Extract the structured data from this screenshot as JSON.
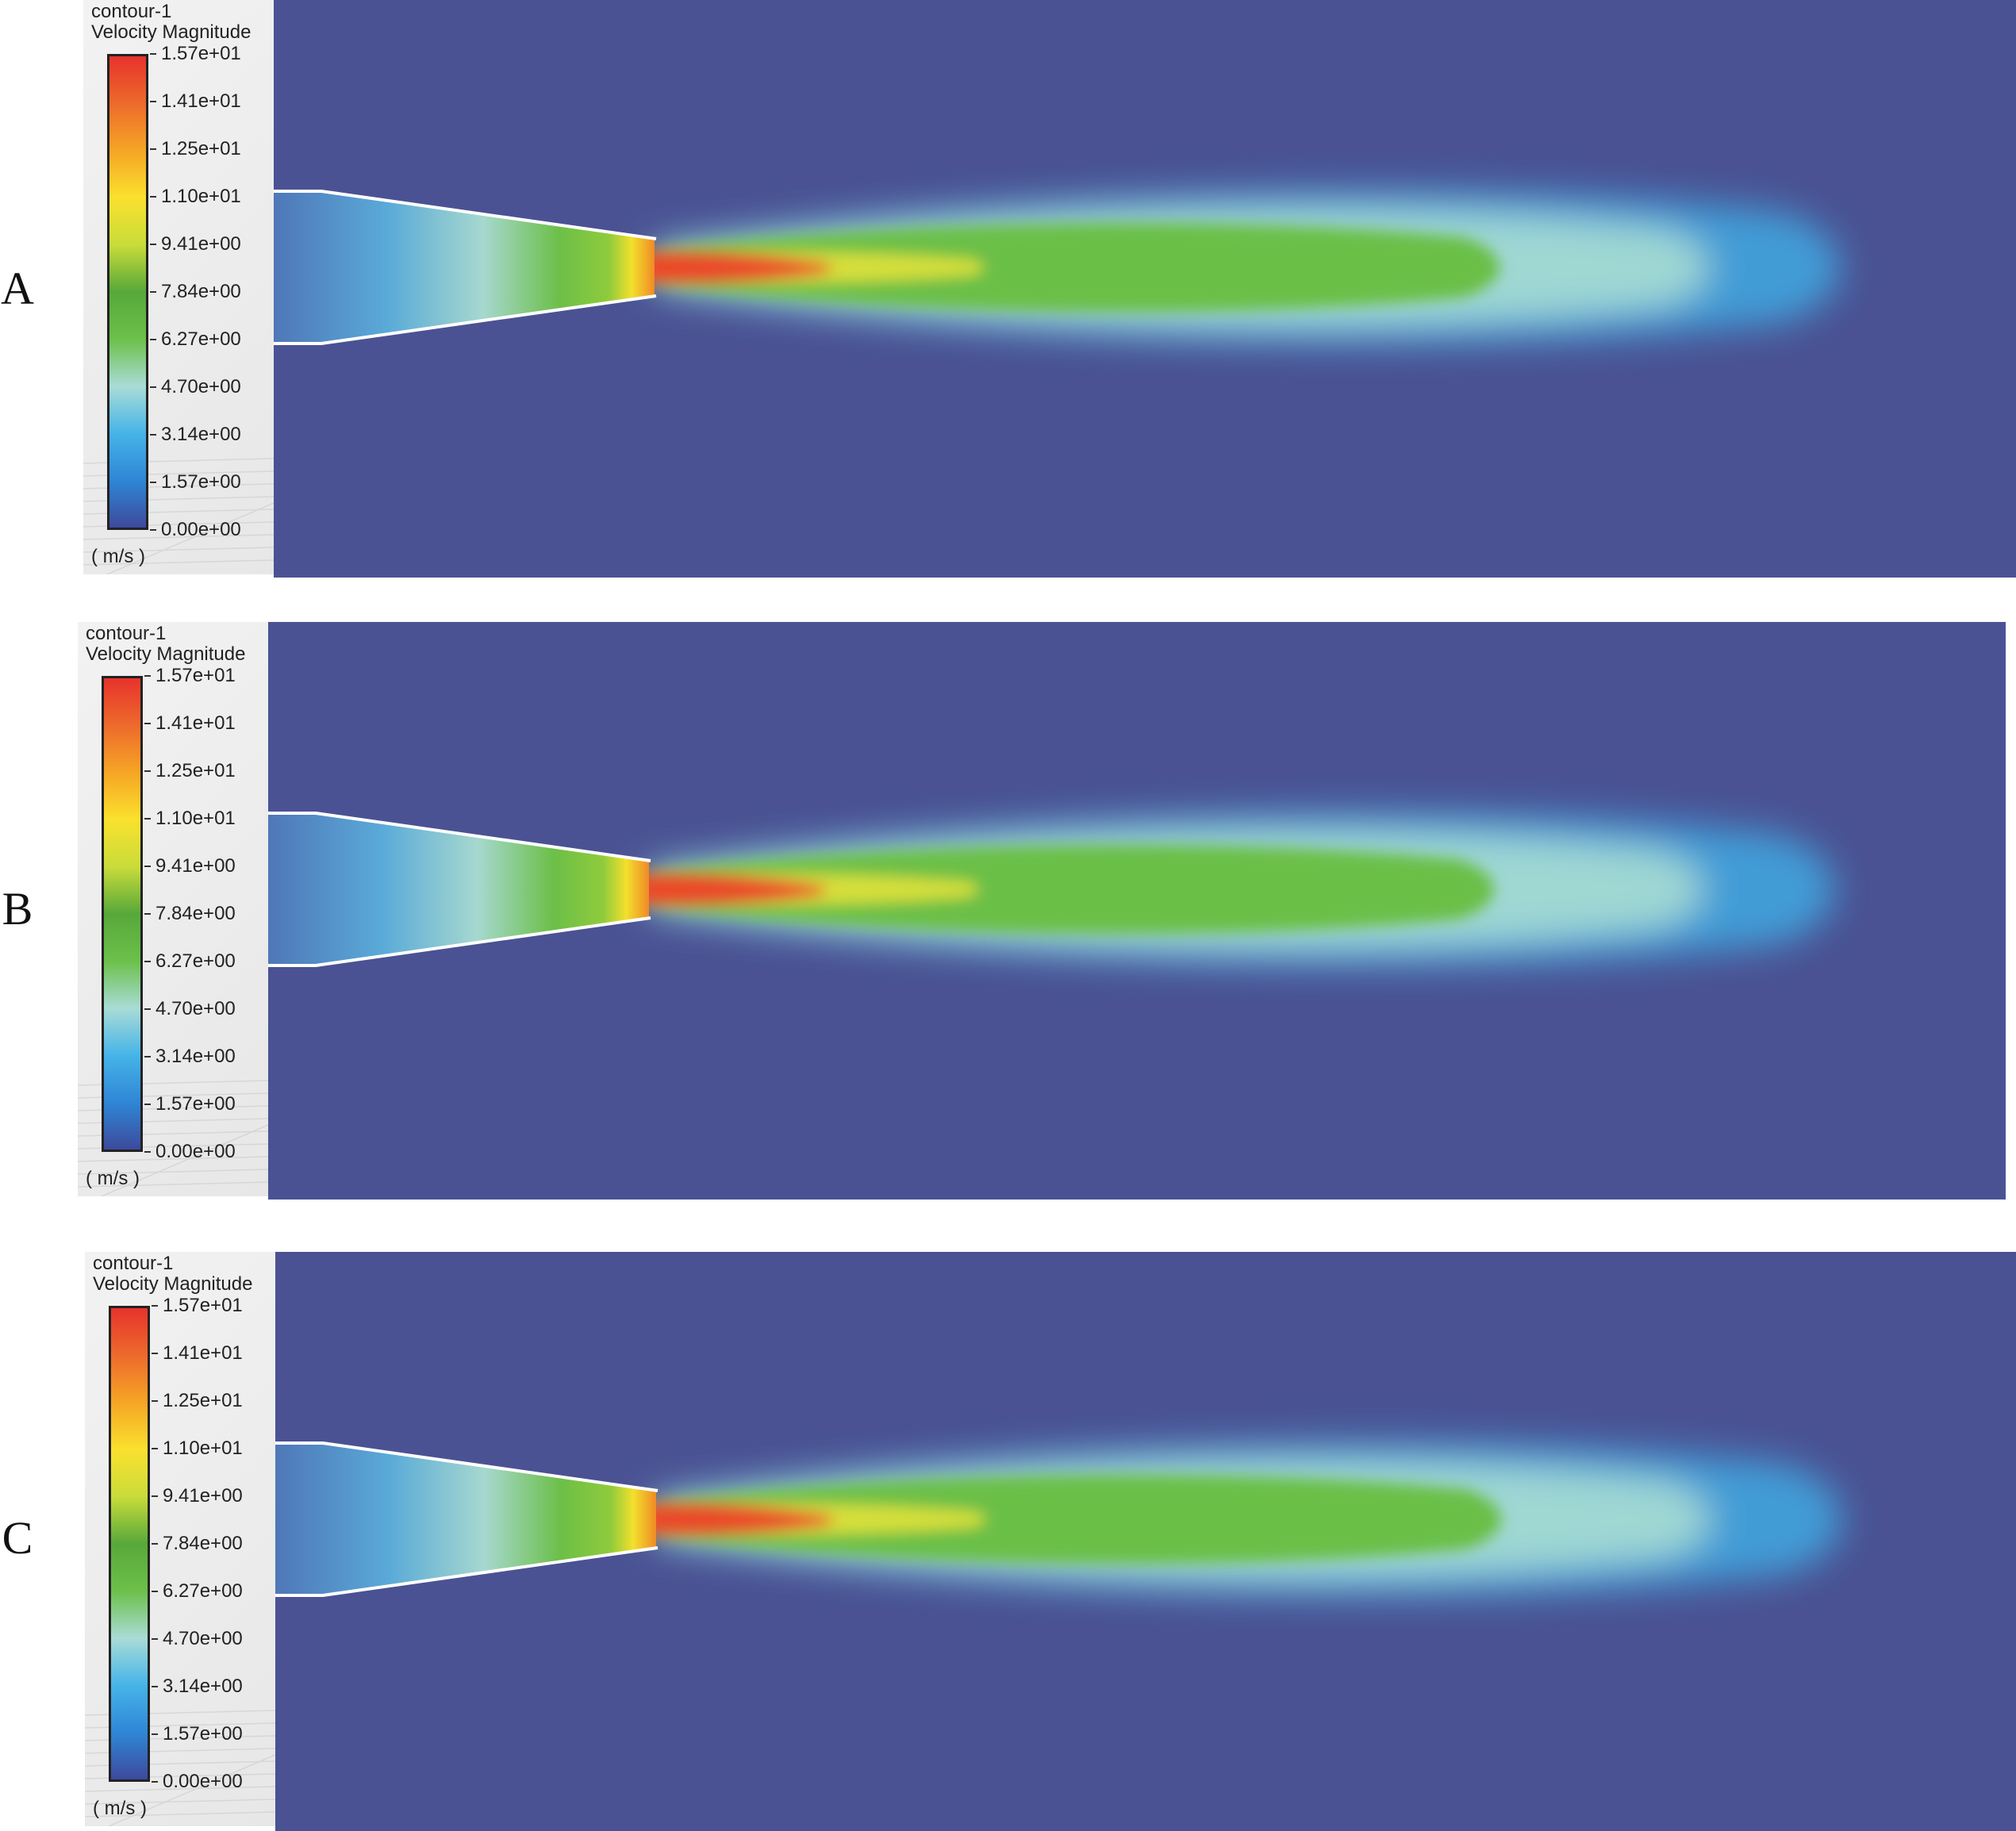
{
  "panels": [
    {
      "letter": "A",
      "legend_title_line1": "contour-1",
      "legend_title_line2": "Velocity Magnitude",
      "unit": "( m/s )"
    },
    {
      "letter": "B",
      "legend_title_line1": "contour-1",
      "legend_title_line2": "Velocity Magnitude",
      "unit": "( m/s )"
    },
    {
      "letter": "C",
      "legend_title_line1": "contour-1",
      "legend_title_line2": "Velocity Magnitude",
      "unit": "( m/s )"
    }
  ],
  "colorbar": {
    "ticks": [
      "1.57e+01",
      "1.41e+01",
      "1.25e+01",
      "1.10e+01",
      "9.41e+00",
      "7.84e+00",
      "6.27e+00",
      "4.70e+00",
      "3.14e+00",
      "1.57e+00",
      "0.00e+00"
    ],
    "colors": [
      "#3d4a9c",
      "#2f86d6",
      "#46b4e8",
      "#a9dcd6",
      "#6cc04a",
      "#57a83a",
      "#c9dc3a",
      "#fae12e",
      "#f6a525",
      "#ed6a2c",
      "#e7332c"
    ],
    "background_color": "#4a5293"
  }
}
